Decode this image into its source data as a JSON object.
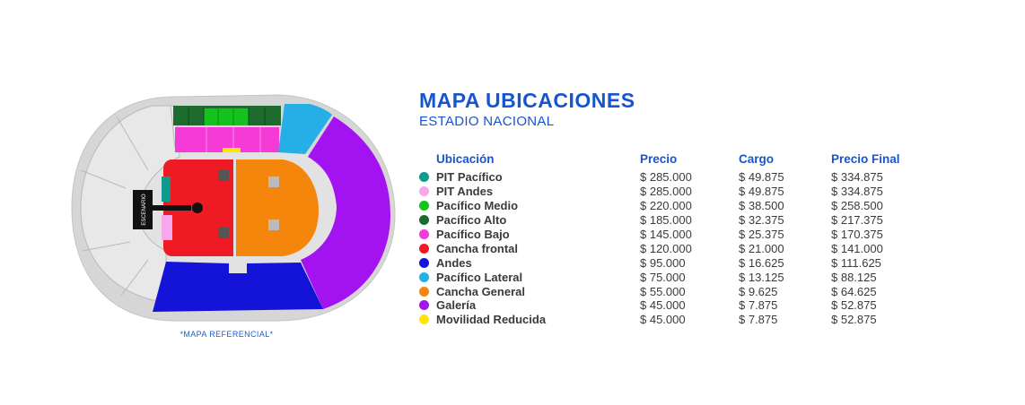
{
  "title": "MAPA UBICACIONES",
  "subtitle": "ESTADIO NACIONAL",
  "map_note": "*MAPA REFERENCIAL*",
  "stage_label": "ESCENARIO",
  "table": {
    "headers": {
      "location": "Ubicación",
      "price": "Precio",
      "fee": "Cargo",
      "final": "Precio Final"
    },
    "rows": [
      {
        "name": "PIT Pacífico",
        "color": "#0e9b8e",
        "price": "$ 285.000",
        "fee": "$ 49.875",
        "final": "$ 334.875"
      },
      {
        "name": "PIT Andes",
        "color": "#f7a8ec",
        "price": "$ 285.000",
        "fee": "$ 49.875",
        "final": "$ 334.875"
      },
      {
        "name": "Pacífico Medio",
        "color": "#14c21d",
        "price": "$ 220.000",
        "fee": "$ 38.500",
        "final": "$ 258.500"
      },
      {
        "name": "Pacífico Alto",
        "color": "#1d6b2f",
        "price": "$ 185.000",
        "fee": "$ 32.375",
        "final": "$ 217.375"
      },
      {
        "name": "Pacífico Bajo",
        "color": "#f53ad8",
        "price": "$ 145.000",
        "fee": "$ 25.375",
        "final": "$ 170.375"
      },
      {
        "name": "Cancha frontal",
        "color": "#ef1b24",
        "price": "$ 120.000",
        "fee": "$ 21.000",
        "final": "$ 141.000"
      },
      {
        "name": "Andes",
        "color": "#1414d9",
        "price": "$ 95.000",
        "fee": "$ 16.625",
        "final": "$ 111.625"
      },
      {
        "name": "Pacífico Lateral",
        "color": "#26aee6",
        "price": "$ 75.000",
        "fee": "$ 13.125",
        "final": "$ 88.125"
      },
      {
        "name": "Cancha General",
        "color": "#f5860c",
        "price": "$ 55.000",
        "fee": "$ 9.625",
        "final": "$ 64.625"
      },
      {
        "name": "Galería",
        "color": "#a312f0",
        "price": "$ 45.000",
        "fee": "$ 7.875",
        "final": "$ 52.875"
      },
      {
        "name": "Movilidad Reducida",
        "color": "#ffe600",
        "price": "$ 45.000",
        "fee": "$ 7.875",
        "final": "$ 52.875"
      }
    ]
  }
}
